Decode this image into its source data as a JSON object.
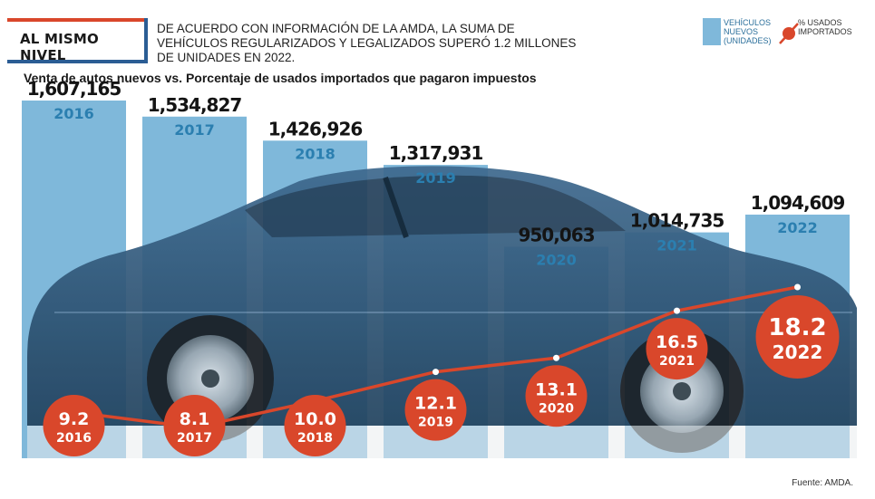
{
  "header": {
    "tag": "AL MISMO NIVEL",
    "intro": "DE ACUERDO CON INFORMACIÓN DE LA AMDA, LA SUMA DE VEHÍCULOS REGULARIZADOS Y LEGALIZADOS SUPERÓ 1.2 MILLONES DE UNIDADES EN 2022."
  },
  "legend": {
    "bars_label": "VEHÍCULOS NUEVOS (UNIDADES)",
    "line_label": "% USADOS IMPORTADOS"
  },
  "source": "Fuente: AMDA.",
  "colors": {
    "bar": "#7fb8da",
    "line": "#d9472b",
    "year_text": "#2b7fb0"
  },
  "chart_data": {
    "type": "bar",
    "title": "Venta de autos nuevos vs. Porcentaje de usados importados que pagaron impuestos",
    "categories": [
      "2016",
      "2017",
      "2018",
      "2019",
      "2020",
      "2021",
      "2022"
    ],
    "series": [
      {
        "name": "VEHÍCULOS NUEVOS (UNIDADES)",
        "type": "bar",
        "values": [
          1607165,
          1534827,
          1426926,
          1317931,
          950063,
          1014735,
          1094609
        ],
        "labels": [
          "1,607,165",
          "1,534,827",
          "1,426,926",
          "1,317,931",
          "950,063",
          "1,014,735",
          "1,094,609"
        ]
      },
      {
        "name": "% USADOS IMPORTADOS",
        "type": "line",
        "values": [
          9.2,
          8.1,
          10.0,
          12.1,
          13.1,
          16.5,
          18.2
        ],
        "labels": [
          "9.2",
          "8.1",
          "10.0",
          "12.1",
          "13.1",
          "16.5",
          "18.2"
        ]
      }
    ]
  }
}
